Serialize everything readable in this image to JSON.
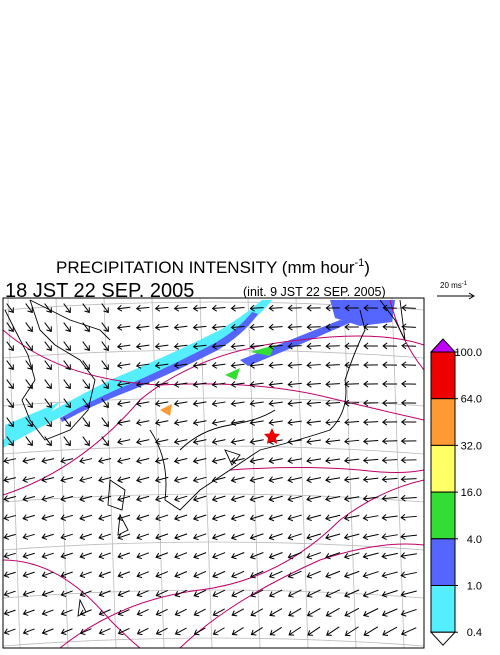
{
  "header": {
    "title": {
      "text": "PRECIPITATION INTENSITY (mm hour",
      "superscript": "-1",
      "suffix": ")"
    },
    "time": "18 JST 22 SEP. 2005",
    "init": "(init. 9 JST 22 SEP. 2005)"
  },
  "wind_scale": {
    "text": "20 ms",
    "superscript": "-1"
  },
  "colorbar": {
    "over_color": "#c000ff",
    "under_color": "#ffffff",
    "levels": [
      {
        "value": 100,
        "label": "100.0"
      },
      {
        "value": 64,
        "label": "64.0"
      },
      {
        "value": 32,
        "label": "32.0"
      },
      {
        "value": 16,
        "label": "16.0"
      },
      {
        "value": 4,
        "label": "4.0"
      },
      {
        "value": 1,
        "label": "1.0"
      },
      {
        "value": 0.4,
        "label": "0.4"
      }
    ],
    "colors": [
      "#ee0000",
      "#ff9933",
      "#ffff66",
      "#33dd33",
      "#5566ff",
      "#55eeff"
    ]
  }
}
